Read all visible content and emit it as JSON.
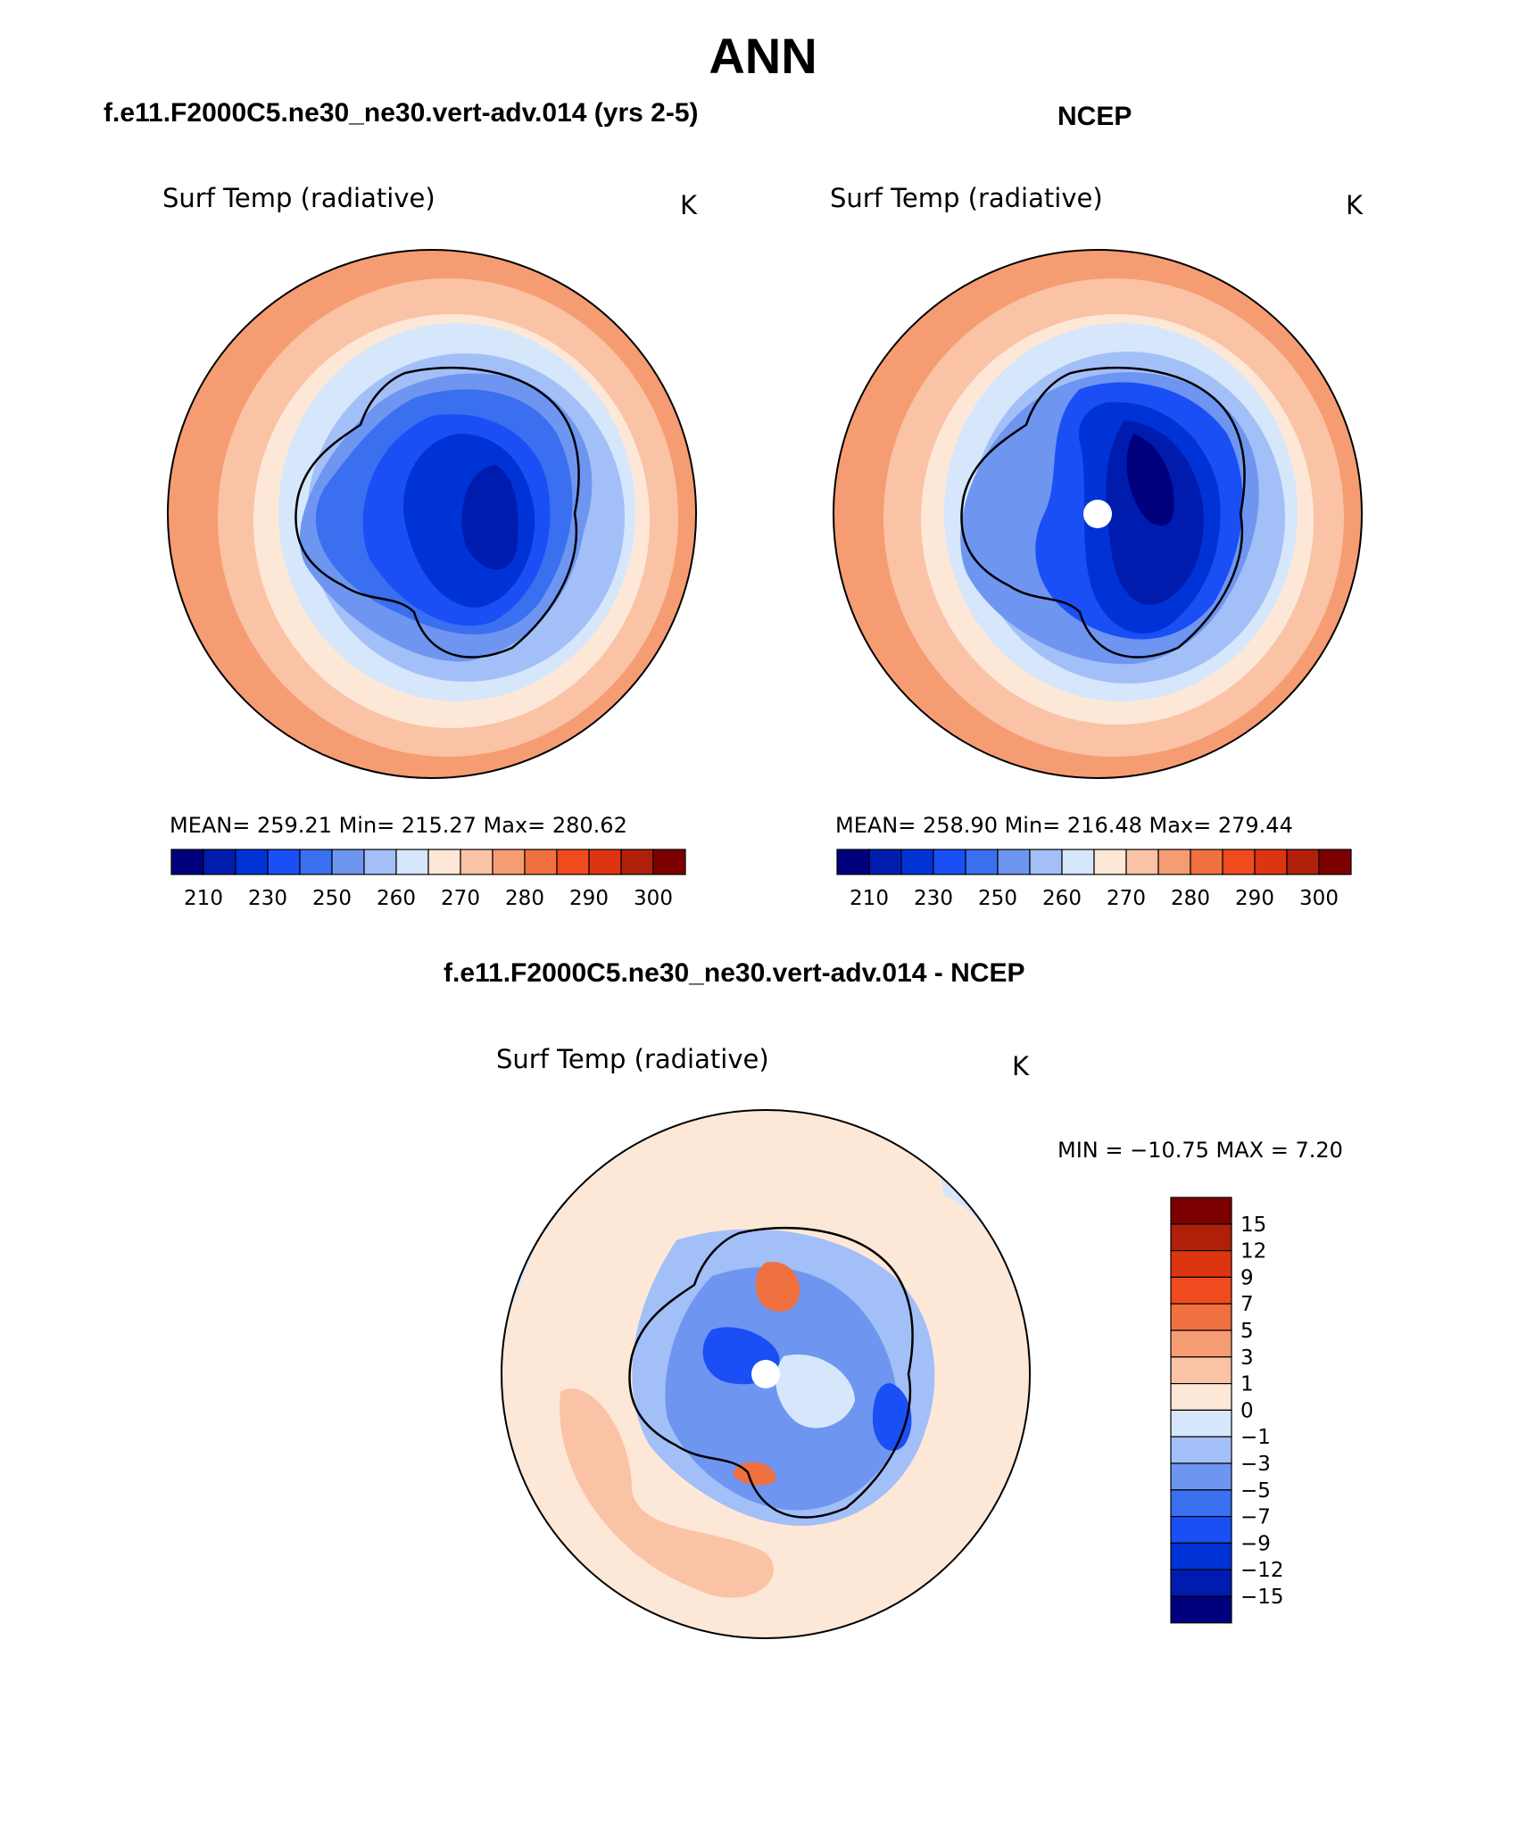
{
  "title": "ANN",
  "panels": [
    {
      "header": "f.e11.F2000C5.ne30_ne30.vert-adv.014 (yrs 2-5)",
      "subtitle": "Surf Temp (radiative)",
      "units": "K",
      "stats": "MEAN=  259.21   Min=  215.27   Max=  280.62"
    },
    {
      "header": "NCEP",
      "subtitle": "Surf Temp (radiative)",
      "units": "K",
      "stats": "MEAN=  258.90   Min=  216.48   Max=  279.44"
    },
    {
      "header": "f.e11.F2000C5.ne30_ne30.vert-adv.014 - NCEP",
      "subtitle": "Surf Temp (radiative)",
      "units": "K",
      "stats": "MIN  =  −10.75  MAX  =     7.20"
    }
  ],
  "colorbar_abs": {
    "colors": [
      "#00007f",
      "#001cae",
      "#0033d6",
      "#1a4ff5",
      "#3a6ff0",
      "#6e95f0",
      "#a3bff7",
      "#d6e6fb",
      "#fde8d8",
      "#fbc3a5",
      "#f69c73",
      "#f07040",
      "#f04b1e",
      "#dc3510",
      "#b01f0a",
      "#7d0000"
    ],
    "tick_labels": [
      "210",
      "230",
      "250",
      "260",
      "270",
      "280",
      "290",
      "300"
    ]
  },
  "colorbar_diff": {
    "colors": [
      "#7d0000",
      "#b01f0a",
      "#dc3510",
      "#f04b1e",
      "#f07040",
      "#f69c73",
      "#fbc3a5",
      "#fde8d8",
      "#d6e6fb",
      "#a3bff7",
      "#6e95f0",
      "#3a6ff0",
      "#1a4ff5",
      "#0033d6",
      "#001cae",
      "#00007f"
    ],
    "tick_labels": [
      "15",
      "12",
      "9",
      "7",
      "5",
      "3",
      "1",
      "0",
      "−1",
      "−3",
      "−5",
      "−7",
      "−9",
      "−12",
      "−15"
    ]
  }
}
